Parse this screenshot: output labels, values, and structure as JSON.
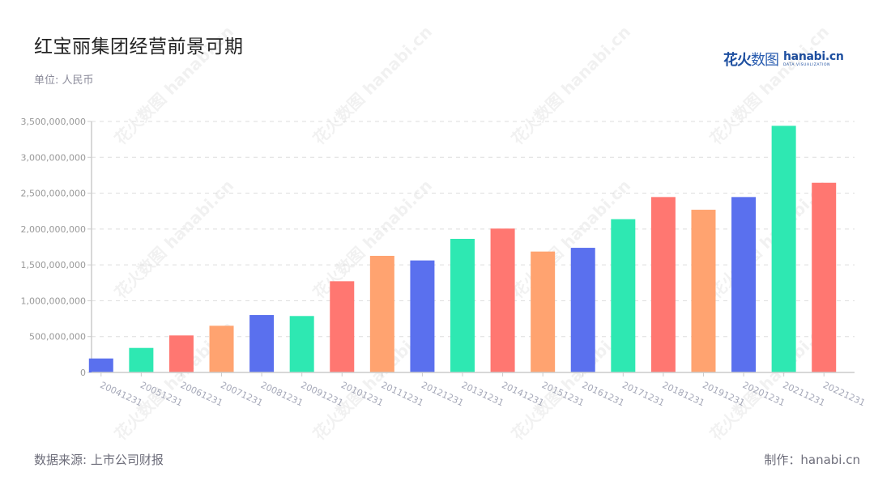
{
  "header": {
    "title": "红宝丽集团经营前景可期",
    "unit": "单位: 人民币"
  },
  "logo": {
    "cn_bold": "花火",
    "cn_light": "数图",
    "en_name": "hanabi.cn",
    "en_tag": "DATA VISUALIZATION"
  },
  "footer": {
    "source": "数据来源: 上市公司财报",
    "credit": "制作：hanabi.cn"
  },
  "watermark": "花火数图 hanabi.cn",
  "colors": [
    "#5a70ee",
    "#2ee8b2",
    "#ff7771",
    "#ffa370"
  ],
  "chart_data": {
    "type": "bar",
    "title": "红宝丽集团经营前景可期",
    "subtitle": "单位: 人民币",
    "xlabel": "",
    "ylabel": "",
    "ylim": [
      0,
      3500000000
    ],
    "yticks": [
      0,
      500000000,
      1000000000,
      1500000000,
      2000000000,
      2500000000,
      3000000000,
      3500000000
    ],
    "ytick_labels": [
      "0",
      "500,000,000",
      "1,000,000,000",
      "1,500,000,000",
      "2,000,000,000",
      "2,500,000,000",
      "3,000,000,000",
      "3,500,000,000"
    ],
    "grid": "horizontal dashed",
    "legend": "none",
    "categories": [
      "20041231",
      "20051231",
      "20061231",
      "20071231",
      "20081231",
      "20091231",
      "20101231",
      "20111231",
      "20121231",
      "20131231",
      "20141231",
      "20151231",
      "20161231",
      "20171231",
      "20181231",
      "20191231",
      "20201231",
      "20211231",
      "20221231"
    ],
    "values": [
      195000000,
      342000000,
      516000000,
      651000000,
      801000000,
      787000000,
      1272000000,
      1626000000,
      1562000000,
      1863000000,
      2006000000,
      1686000000,
      1738000000,
      2137000000,
      2446000000,
      2269000000,
      2446000000,
      3439000000,
      2645000000
    ],
    "bar_colors": [
      "#5a70ee",
      "#2ee8b2",
      "#ff7771",
      "#ffa370",
      "#5a70ee",
      "#2ee8b2",
      "#ff7771",
      "#ffa370",
      "#5a70ee",
      "#2ee8b2",
      "#ff7771",
      "#ffa370",
      "#5a70ee",
      "#2ee8b2",
      "#ff7771",
      "#ffa370",
      "#5a70ee",
      "#2ee8b2",
      "#ff7771"
    ]
  }
}
